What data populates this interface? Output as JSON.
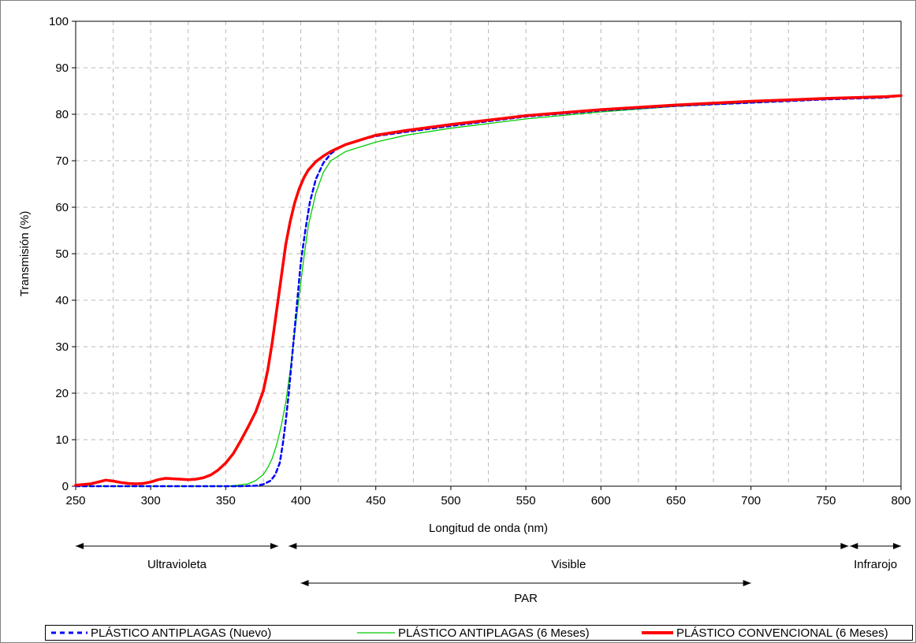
{
  "chart_data": {
    "type": "line",
    "title": "",
    "xlabel": "Longitud de onda (nm)",
    "ylabel": "Transmisión (%)",
    "xlim": [
      250,
      800
    ],
    "ylim": [
      0,
      100
    ],
    "xticks": [
      250,
      300,
      350,
      400,
      450,
      500,
      550,
      600,
      650,
      700,
      750,
      800
    ],
    "yticks": [
      0,
      10,
      20,
      30,
      40,
      50,
      60,
      70,
      80,
      90,
      100
    ],
    "grid": true,
    "legend_position": "bottom",
    "series": [
      {
        "name": "PLÁSTICO ANTIPLAGAS (Nuevo)",
        "color": "#0000ff",
        "style": "dashed",
        "x": [
          250,
          300,
          340,
          360,
          370,
          375,
          380,
          383,
          386,
          388,
          390,
          392,
          394,
          396,
          398,
          400,
          403,
          406,
          410,
          415,
          420,
          425,
          430,
          440,
          450,
          470,
          500,
          550,
          600,
          650,
          700,
          750,
          790,
          800
        ],
        "y": [
          0,
          0,
          0,
          0,
          0.1,
          0.4,
          1.2,
          2.5,
          5,
          9,
          14,
          20,
          27,
          34,
          41,
          48,
          55,
          61,
          66,
          69.5,
          71.5,
          72.8,
          73.5,
          74.5,
          75.3,
          76.2,
          77.5,
          79.5,
          80.8,
          81.8,
          82.5,
          83.2,
          83.6,
          84
        ]
      },
      {
        "name": "PLÁSTICO ANTIPLAGAS (6 Meses)",
        "color": "#00cc00",
        "style": "solid",
        "x": [
          250,
          300,
          340,
          355,
          365,
          370,
          375,
          378,
          381,
          384,
          387,
          390,
          393,
          396,
          399,
          402,
          405,
          410,
          415,
          420,
          430,
          440,
          450,
          470,
          500,
          550,
          600,
          650,
          700,
          750,
          790,
          800
        ],
        "y": [
          0,
          0,
          0,
          0.1,
          0.5,
          1.2,
          2.5,
          4,
          6,
          9,
          13,
          18,
          25,
          33,
          41,
          49,
          56,
          63,
          67.5,
          70,
          72,
          73,
          74,
          75.5,
          77,
          79,
          80.5,
          81.7,
          82.5,
          83.2,
          83.6,
          84
        ]
      },
      {
        "name": "PLÁSTICO CONVENCIONAL (6 Meses)",
        "color": "#ff0000",
        "style": "solid",
        "x": [
          250,
          260,
          265,
          270,
          275,
          280,
          285,
          290,
          295,
          300,
          305,
          310,
          315,
          320,
          325,
          330,
          335,
          340,
          345,
          350,
          355,
          360,
          365,
          370,
          375,
          378,
          381,
          384,
          387,
          390,
          393,
          396,
          399,
          402,
          405,
          410,
          415,
          420,
          430,
          440,
          450,
          470,
          500,
          550,
          600,
          650,
          700,
          750,
          790,
          800
        ],
        "y": [
          0.2,
          0.5,
          0.9,
          1.3,
          1.1,
          0.8,
          0.6,
          0.5,
          0.6,
          0.9,
          1.4,
          1.7,
          1.6,
          1.5,
          1.4,
          1.5,
          1.8,
          2.4,
          3.5,
          5,
          7,
          9.8,
          12.8,
          16,
          20.5,
          25,
          31,
          38,
          45,
          52,
          57,
          61,
          64,
          66.3,
          68,
          69.8,
          71,
          72,
          73.5,
          74.5,
          75.5,
          76.5,
          77.8,
          79.7,
          81,
          82,
          82.8,
          83.4,
          83.8,
          84
        ]
      }
    ],
    "annotations": [
      {
        "label": "Ultravioleta",
        "x_start": 250,
        "x_end": 385
      },
      {
        "label": "Visible",
        "x_start": 392,
        "x_end": 765
      },
      {
        "label": "Infrarojo",
        "x_start": 766,
        "x_end": 800
      },
      {
        "label": "PAR",
        "x_start": 400,
        "x_end": 700
      }
    ]
  }
}
